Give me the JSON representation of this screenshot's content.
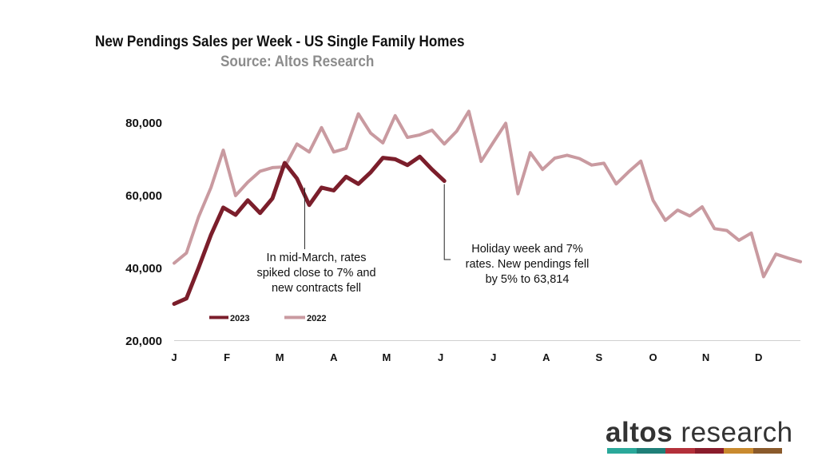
{
  "title": "New Pendings Sales per Week - US Single Family Homes",
  "subtitle": "Source: Altos Research",
  "annotations": {
    "march": [
      "In mid-March, rates",
      "spiked close to 7% and",
      "new contracts fell"
    ],
    "holiday": [
      "Holiday week and 7%",
      "rates. New pendings fell",
      "by 5% to  63,814"
    ]
  },
  "logo": {
    "bold": "altos",
    "light": " research"
  },
  "colors": {
    "series_2023": "#7b1e2b",
    "series_2022": "#c99aa0",
    "stripe": [
      "#2aa89a",
      "#1f7f78",
      "#b3303a",
      "#8a1c2b",
      "#c98a2e",
      "#8a5a2b"
    ]
  },
  "chart_data": {
    "type": "line",
    "title": "New Pendings Sales per Week - US Single Family Homes",
    "xlabel": "",
    "ylabel": "",
    "ylim": [
      20000,
      80000
    ],
    "yticks": [
      20000,
      40000,
      60000,
      80000
    ],
    "ytick_labels": [
      "20,000",
      "40,000",
      "60,000",
      "80,000"
    ],
    "x_tick_labels": [
      "J",
      "F",
      "M",
      "A",
      "M",
      "J",
      "J",
      "A",
      "S",
      "O",
      "N",
      "D"
    ],
    "x_tick_weeks": [
      0,
      4.3,
      8.6,
      13,
      17.3,
      21.7,
      26,
      30.3,
      34.6,
      39,
      43.3,
      47.6
    ],
    "legend_position": "lower-left",
    "series": [
      {
        "name": "2023",
        "color": "#7b1e2b",
        "values": [
          30000,
          31500,
          40000,
          49000,
          56500,
          54500,
          58500,
          55000,
          59000,
          68800,
          64500,
          57200,
          62000,
          61200,
          65000,
          63000,
          66200,
          70200,
          69800,
          68200,
          70500,
          67000,
          63814
        ]
      },
      {
        "name": "2022",
        "color": "#c99aa0",
        "values": [
          41200,
          44000,
          54000,
          62000,
          72300,
          59800,
          63500,
          66500,
          67500,
          67700,
          74000,
          71800,
          78500,
          71800,
          72800,
          82300,
          77000,
          74300,
          81800,
          75800,
          76500,
          77800,
          74000,
          77500,
          83000,
          69200,
          74500,
          79700,
          60300,
          71600,
          67000,
          70100,
          70900,
          70000,
          68200,
          68700,
          63000,
          66300,
          69300,
          58500,
          53000,
          55800,
          54200,
          56700,
          50700,
          50200,
          47500,
          49500,
          37500,
          43700,
          42600,
          41600
        ]
      }
    ]
  }
}
